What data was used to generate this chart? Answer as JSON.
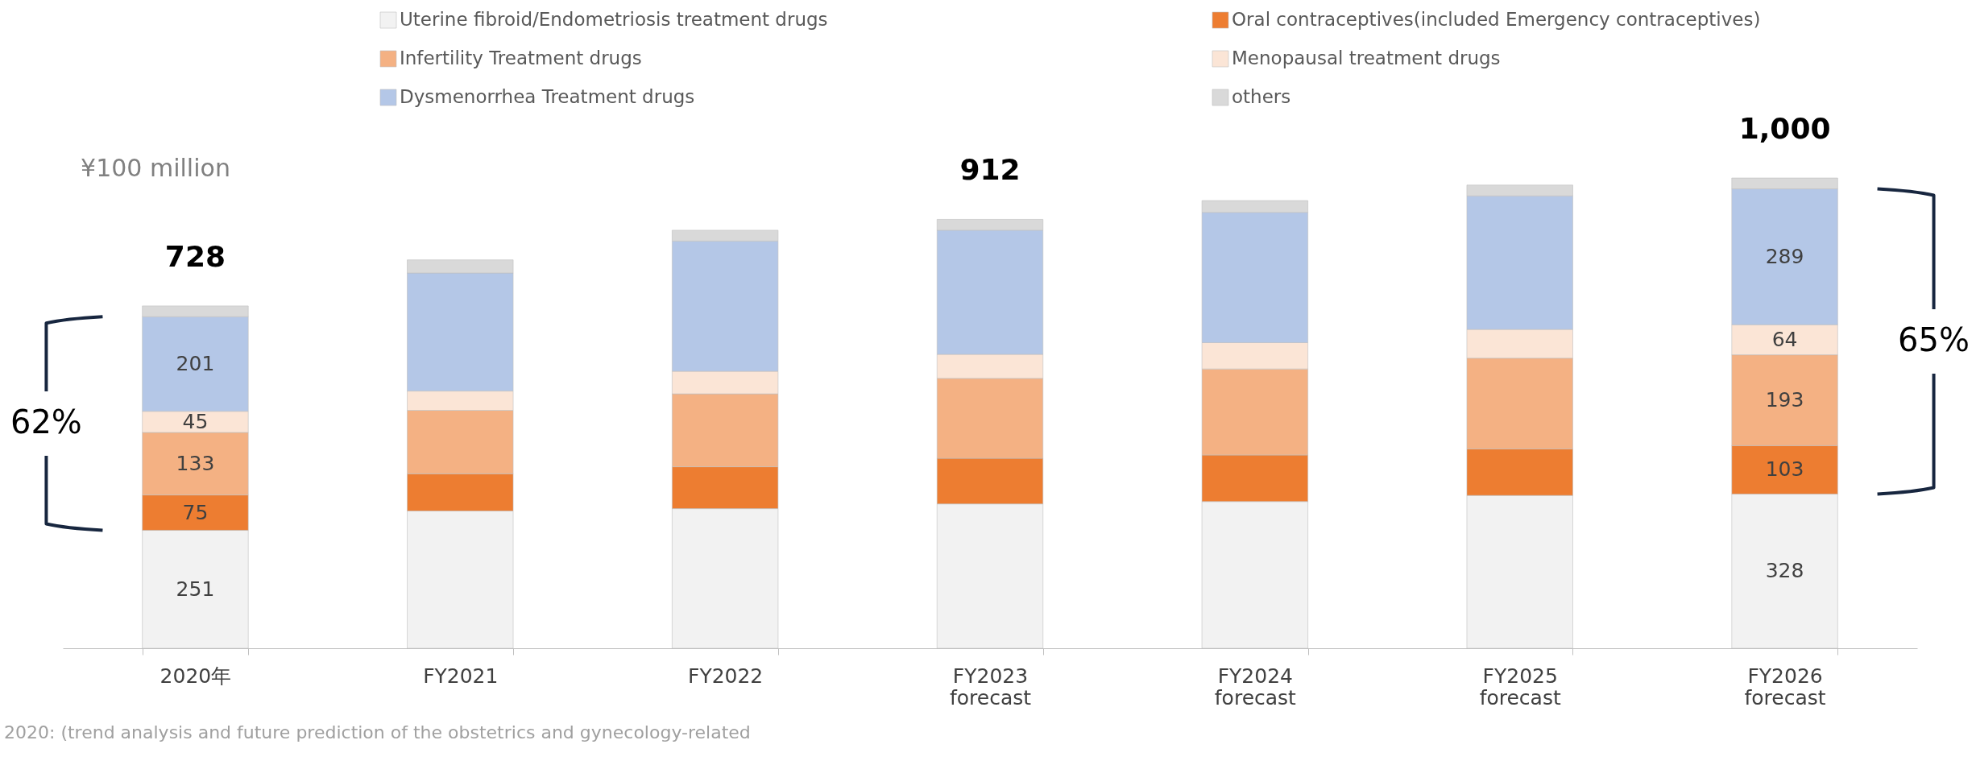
{
  "chart_data": {
    "type": "bar",
    "stacked": true,
    "legend": "top",
    "data_labels": false,
    "categories": [
      "2020年",
      "FY2021",
      "FY2022",
      "FY2023 forecast",
      "FY2024 forecast",
      "FY2025 forecast",
      "FY2026 forecast"
    ],
    "series": [
      {
        "name": "Uterine fibroid/Endometriosis treatment drugs",
        "color": "#f2f2f2",
        "values": [
          251,
          292,
          297,
          307,
          312,
          325,
          328
        ],
        "value_labels": [
          "251",
          null,
          null,
          null,
          null,
          null,
          "328"
        ]
      },
      {
        "name": "Oral contraceptives(included Emergency contraceptives)",
        "color": "#ed7d31",
        "values": [
          75,
          79,
          89,
          97,
          99,
          99,
          103
        ],
        "value_labels": [
          "75",
          null,
          null,
          null,
          null,
          null,
          "103"
        ]
      },
      {
        "name": "Infertility Treatment drugs",
        "color": "#f4b183",
        "values": [
          133,
          135,
          155,
          170,
          183,
          193,
          193
        ],
        "value_labels": [
          "133",
          null,
          null,
          null,
          null,
          null,
          "193"
        ]
      },
      {
        "name": "Menopausal treatment drugs",
        "color": "#fbe5d6",
        "values": [
          45,
          41,
          48,
          51,
          56,
          61,
          64
        ],
        "value_labels": [
          "45",
          null,
          null,
          null,
          null,
          null,
          "64"
        ]
      },
      {
        "name": "Dysmenorrhea Treatment drugs",
        "color": "#b4c7e7",
        "values": [
          201,
          251,
          277,
          264,
          277,
          284,
          289
        ],
        "value_labels": [
          "201",
          null,
          null,
          null,
          null,
          null,
          "289"
        ]
      },
      {
        "name": "others",
        "color": "#d9d9d9",
        "values": [
          23,
          28,
          23,
          23,
          25,
          23,
          23
        ]
      }
    ],
    "totals": [
      "728",
      null,
      null,
      "912",
      null,
      null,
      "1,000"
    ],
    "annotations": [
      "¥100 million",
      "62%",
      "65%",
      "2020: (trend analysis and future prediction of the obstetrics and gynecology-related"
    ]
  }
}
